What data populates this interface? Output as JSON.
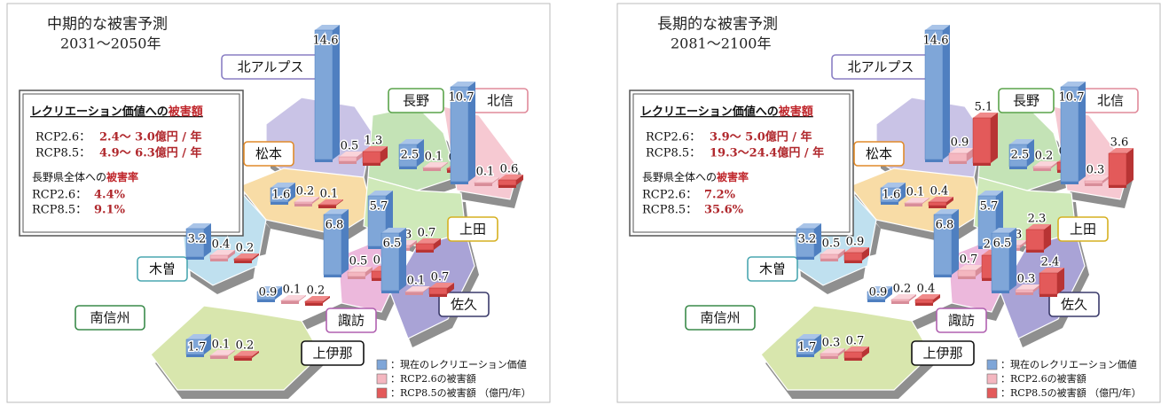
{
  "panels": [
    {
      "title": "中期的な被害予測",
      "period": "2031～2050年",
      "box": {
        "heading": "レクリエーション価値への",
        "heading_em": "被害額",
        "rows": [
          {
            "label": "RCP2.6：",
            "value": "2.4～ 3.0億円 / 年"
          },
          {
            "label": "RCP8.5：",
            "value": "4.9～ 6.3億円 / 年"
          }
        ],
        "rate_heading": "長野県全体への",
        "rate_heading_em": "被害率",
        "rates": [
          {
            "label": "RCP2.6：",
            "value": "4.4%"
          },
          {
            "label": "RCP8.5：",
            "value": "9.1%"
          }
        ]
      },
      "regions": [
        "北アルプス",
        "長野",
        "北信",
        "松本",
        "上田",
        "木曽",
        "佐久",
        "南信州",
        "諏訪",
        "上伊那"
      ],
      "bars": [
        {
          "current": 14.6,
          "rcp26": 0.5,
          "rcp85": 1.3
        },
        {
          "current": 2.5,
          "rcp26": 0.1,
          "rcp85": 0.2
        },
        {
          "current": 10.7,
          "rcp26": 0.1,
          "rcp85": 0.6
        },
        {
          "current": 1.6,
          "rcp26": 0.2,
          "rcp85": 0.1
        },
        {
          "current": 5.7,
          "rcp26": 0.3,
          "rcp85": 0.7
        },
        {
          "current": 3.2,
          "rcp26": 0.4,
          "rcp85": 0.2
        },
        {
          "current": 6.8,
          "rcp26": 0.5,
          "rcp85": 0.8
        },
        {
          "current": 6.5,
          "rcp26": 0.1,
          "rcp85": 0.7
        },
        {
          "current": 0.9,
          "rcp26": 0.1,
          "rcp85": 0.2
        },
        {
          "current": 1.7,
          "rcp26": 0.1,
          "rcp85": 0.2
        }
      ],
      "legend": [
        "：現在のレクリエーション価値",
        "：RCP2.6の被害額",
        "：RCP8.5の被害額 （億円/年）"
      ]
    },
    {
      "title": "長期的な被害予測",
      "period": "2081～2100年",
      "box": {
        "heading": "レクリエーション価値への",
        "heading_em": "被害額",
        "rows": [
          {
            "label": "RCP2.6：",
            "value": "3.9～ 5.0億円 / 年"
          },
          {
            "label": "RCP8.5：",
            "value": "19.3～24.4億円 / 年"
          }
        ],
        "rate_heading": "長野県全体への",
        "rate_heading_em": "被害率",
        "rates": [
          {
            "label": "RCP2.6：",
            "value": "7.2%"
          },
          {
            "label": "RCP8.5：",
            "value": "35.6%"
          }
        ]
      },
      "regions": [
        "北アルプス",
        "長野",
        "北信",
        "松本",
        "上田",
        "木曽",
        "佐久",
        "南信州",
        "諏訪",
        "上伊那"
      ],
      "bars": [
        {
          "current": 14.6,
          "rcp26": 0.9,
          "rcp85": 5.1
        },
        {
          "current": 2.5,
          "rcp26": 0.2,
          "rcp85": 0.9
        },
        {
          "current": 10.7,
          "rcp26": 0.3,
          "rcp85": 3.6
        },
        {
          "current": 1.6,
          "rcp26": 0.1,
          "rcp85": 0.4
        },
        {
          "current": 5.7,
          "rcp26": 0.3,
          "rcp85": 2.3
        },
        {
          "current": 3.2,
          "rcp26": 0.5,
          "rcp85": 0.9
        },
        {
          "current": 6.8,
          "rcp26": 0.7,
          "rcp85": 2.6
        },
        {
          "current": 6.5,
          "rcp26": 0.3,
          "rcp85": 2.4
        },
        {
          "current": 0.9,
          "rcp26": 0.2,
          "rcp85": 0.4
        },
        {
          "current": 1.7,
          "rcp26": 0.3,
          "rcp85": 0.7
        }
      ],
      "legend": [
        "：現在のレクリエーション価値",
        "：RCP2.6の被害額",
        "：RCP8.5の被害額 （億円/年）"
      ]
    }
  ]
}
